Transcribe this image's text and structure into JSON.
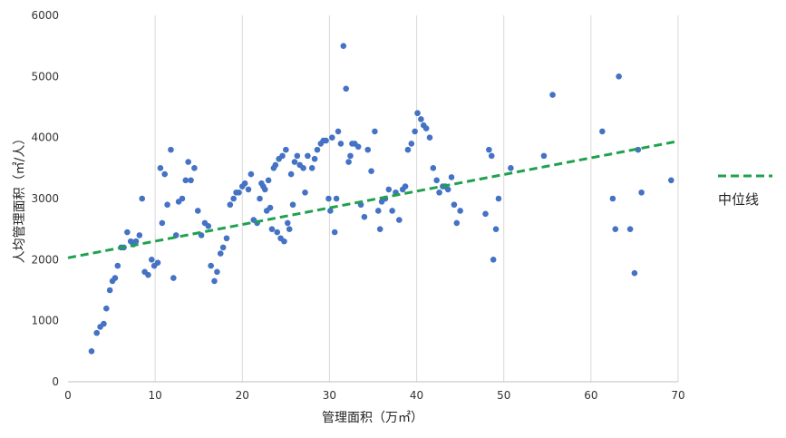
{
  "chart_data": {
    "type": "scatter",
    "title": "",
    "xlabel": "管理面积（万㎡）",
    "ylabel": "人均管理面积（㎡/人）",
    "xlim": [
      0,
      70
    ],
    "ylim": [
      0,
      6000
    ],
    "x_ticks": [
      "0",
      "10",
      "20",
      "30",
      "40",
      "50",
      "60",
      "70"
    ],
    "y_ticks": [
      "0",
      "1000",
      "2000",
      "3000",
      "4000",
      "5000",
      "6000"
    ],
    "grid": "vertical",
    "legend_position": "right",
    "colors": {
      "points": "#4472C4",
      "median_line": "#1FA14E"
    },
    "median_line": {
      "name": "中位线",
      "style": "dashed",
      "x": [
        0,
        70
      ],
      "y": [
        2030,
        3940
      ]
    },
    "series": [
      {
        "name": "",
        "points": [
          [
            2.7,
            500
          ],
          [
            3.3,
            800
          ],
          [
            3.7,
            900
          ],
          [
            4.1,
            950
          ],
          [
            4.4,
            1200
          ],
          [
            4.8,
            1500
          ],
          [
            5.1,
            1650
          ],
          [
            5.4,
            1700
          ],
          [
            5.7,
            1900
          ],
          [
            6.1,
            2200
          ],
          [
            6.4,
            2200
          ],
          [
            6.8,
            2450
          ],
          [
            7.2,
            2300
          ],
          [
            7.5,
            2250
          ],
          [
            7.8,
            2300
          ],
          [
            8.2,
            2400
          ],
          [
            8.5,
            3000
          ],
          [
            8.8,
            1800
          ],
          [
            9.2,
            1750
          ],
          [
            9.6,
            2000
          ],
          [
            9.9,
            1900
          ],
          [
            10.3,
            1950
          ],
          [
            10.6,
            3500
          ],
          [
            10.8,
            2600
          ],
          [
            11.1,
            3400
          ],
          [
            11.4,
            2900
          ],
          [
            11.8,
            3800
          ],
          [
            12.1,
            1700
          ],
          [
            12.4,
            2400
          ],
          [
            12.7,
            2950
          ],
          [
            13.1,
            3000
          ],
          [
            13.5,
            3300
          ],
          [
            13.8,
            3600
          ],
          [
            14.1,
            3300
          ],
          [
            14.5,
            3500
          ],
          [
            14.9,
            2800
          ],
          [
            15.3,
            2400
          ],
          [
            15.7,
            2600
          ],
          [
            16.1,
            2550
          ],
          [
            16.4,
            1900
          ],
          [
            16.8,
            1650
          ],
          [
            17.1,
            1800
          ],
          [
            17.5,
            2100
          ],
          [
            17.8,
            2200
          ],
          [
            18.2,
            2350
          ],
          [
            18.6,
            2900
          ],
          [
            19.0,
            3000
          ],
          [
            19.3,
            3100
          ],
          [
            19.6,
            3100
          ],
          [
            20.0,
            3200
          ],
          [
            20.3,
            3250
          ],
          [
            20.7,
            3150
          ],
          [
            21.0,
            3400
          ],
          [
            21.3,
            2650
          ],
          [
            21.7,
            2600
          ],
          [
            22.0,
            3000
          ],
          [
            22.2,
            3250
          ],
          [
            22.4,
            3200
          ],
          [
            22.6,
            3150
          ],
          [
            22.8,
            2800
          ],
          [
            23.0,
            3300
          ],
          [
            23.2,
            2850
          ],
          [
            23.4,
            2500
          ],
          [
            23.6,
            3500
          ],
          [
            23.8,
            3550
          ],
          [
            24.0,
            2450
          ],
          [
            24.2,
            3650
          ],
          [
            24.4,
            2350
          ],
          [
            24.6,
            3700
          ],
          [
            24.8,
            2300
          ],
          [
            25.0,
            3800
          ],
          [
            25.2,
            2600
          ],
          [
            25.4,
            2500
          ],
          [
            25.6,
            3400
          ],
          [
            25.8,
            2900
          ],
          [
            26.0,
            3600
          ],
          [
            26.3,
            3700
          ],
          [
            26.6,
            3550
          ],
          [
            27.0,
            3500
          ],
          [
            27.2,
            3100
          ],
          [
            27.5,
            3700
          ],
          [
            28.0,
            3500
          ],
          [
            28.3,
            3650
          ],
          [
            28.6,
            3800
          ],
          [
            29.0,
            3900
          ],
          [
            29.3,
            3950
          ],
          [
            29.6,
            3950
          ],
          [
            29.9,
            3000
          ],
          [
            30.1,
            2800
          ],
          [
            30.3,
            4000
          ],
          [
            30.6,
            2450
          ],
          [
            30.8,
            3000
          ],
          [
            31.0,
            4100
          ],
          [
            31.3,
            3900
          ],
          [
            31.6,
            5500
          ],
          [
            31.9,
            4800
          ],
          [
            32.2,
            3600
          ],
          [
            32.4,
            3700
          ],
          [
            32.6,
            3900
          ],
          [
            32.9,
            3900
          ],
          [
            33.3,
            3850
          ],
          [
            33.6,
            2900
          ],
          [
            34.0,
            2700
          ],
          [
            34.4,
            3800
          ],
          [
            34.8,
            3450
          ],
          [
            35.2,
            4100
          ],
          [
            35.6,
            2800
          ],
          [
            35.8,
            2500
          ],
          [
            36.0,
            2950
          ],
          [
            36.4,
            3000
          ],
          [
            36.8,
            3150
          ],
          [
            37.2,
            2800
          ],
          [
            37.6,
            3100
          ],
          [
            38.0,
            2650
          ],
          [
            38.4,
            3150
          ],
          [
            38.7,
            3200
          ],
          [
            39.0,
            3800
          ],
          [
            39.4,
            3900
          ],
          [
            39.8,
            4100
          ],
          [
            40.1,
            4400
          ],
          [
            40.5,
            4300
          ],
          [
            40.8,
            4200
          ],
          [
            41.1,
            4150
          ],
          [
            41.5,
            4000
          ],
          [
            41.9,
            3500
          ],
          [
            42.3,
            3300
          ],
          [
            42.6,
            3100
          ],
          [
            43.0,
            3200
          ],
          [
            43.3,
            3200
          ],
          [
            43.6,
            3150
          ],
          [
            44.0,
            3350
          ],
          [
            44.3,
            2900
          ],
          [
            44.6,
            2600
          ],
          [
            45.0,
            2800
          ],
          [
            47.9,
            2750
          ],
          [
            48.3,
            3800
          ],
          [
            48.6,
            3700
          ],
          [
            48.8,
            2000
          ],
          [
            49.1,
            2500
          ],
          [
            49.4,
            3000
          ],
          [
            50.8,
            3500
          ],
          [
            54.6,
            3700
          ],
          [
            55.6,
            4700
          ],
          [
            61.3,
            4100
          ],
          [
            62.5,
            3000
          ],
          [
            62.8,
            2500
          ],
          [
            63.2,
            5000
          ],
          [
            64.5,
            2500
          ],
          [
            65.0,
            1780
          ],
          [
            65.4,
            3800
          ],
          [
            65.8,
            3100
          ],
          [
            69.2,
            3300
          ]
        ]
      }
    ]
  }
}
